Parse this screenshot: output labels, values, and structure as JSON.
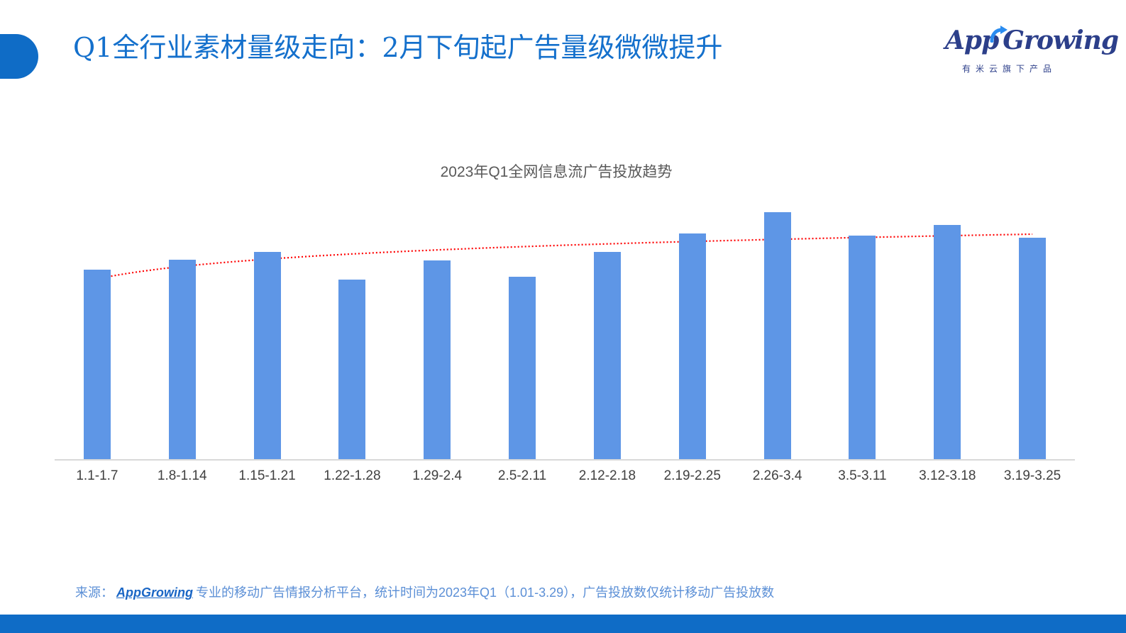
{
  "header": {
    "title": "Q1全行业素材量级走向：2月下旬起广告量级微微提升",
    "logo": {
      "brand": "AppGrowing",
      "brand_part1": "App",
      "brand_part2": "Growing",
      "tagline": "有米云旗下产品",
      "icon": "growth-arrow-icon"
    }
  },
  "colors": {
    "accent": "#0f6cc6",
    "title": "#1470cc",
    "bar": "#5e96e6",
    "trendline": "#ff0000",
    "logo": "#2c3f8a"
  },
  "chart_data": {
    "type": "bar",
    "title": "2023年Q1全网信息流广告投放趋势",
    "xlabel": "",
    "ylabel": "",
    "categories": [
      "1.1-1.7",
      "1.8-1.14",
      "1.15-1.21",
      "1.22-1.28",
      "1.29-2.4",
      "2.5-2.11",
      "2.12-2.18",
      "2.19-2.25",
      "2.26-3.4",
      "3.5-3.11",
      "3.12-3.18",
      "3.19-3.25"
    ],
    "series": [
      {
        "name": "广告投放数",
        "values": [
          267,
          281,
          292,
          253,
          280,
          257,
          292,
          318,
          348,
          315,
          330,
          312
        ]
      }
    ],
    "trendline": {
      "type": "logarithmic",
      "style": "dotted",
      "color": "#ff0000",
      "start": 254,
      "end": 317
    },
    "value_axis_visible": false,
    "grid": false,
    "legend": "none",
    "note": "values are relative bar heights (no numeric axis shown)"
  },
  "footer": {
    "source_label": "来源：",
    "source_brand": "AppGrowing",
    "source_text": "专业的移动广告情报分析平台，统计时间为2023年Q1（1.01-3.29），广告投放数仅统计移动广告投放数"
  }
}
